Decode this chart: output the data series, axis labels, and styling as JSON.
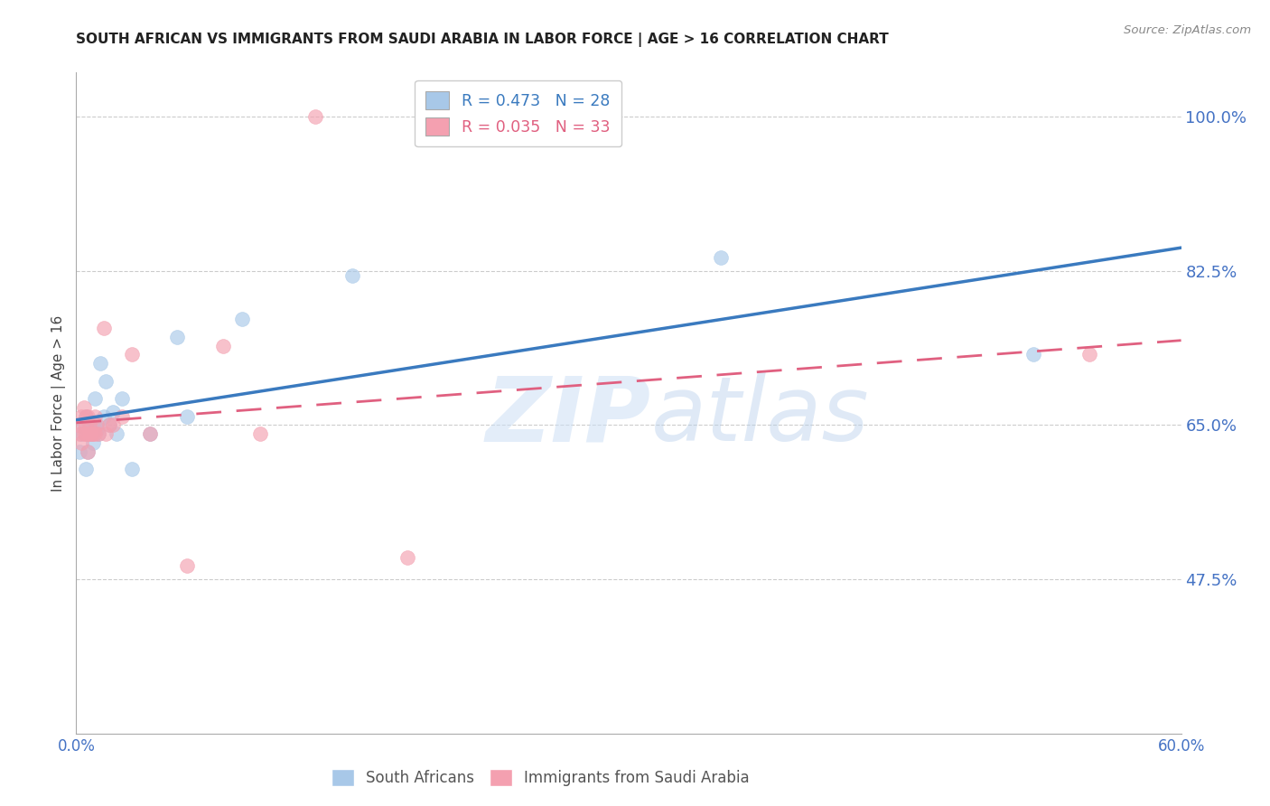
{
  "title": "SOUTH AFRICAN VS IMMIGRANTS FROM SAUDI ARABIA IN LABOR FORCE | AGE > 16 CORRELATION CHART",
  "source": "Source: ZipAtlas.com",
  "ylabel": "In Labor Force | Age > 16",
  "xlim": [
    0.0,
    0.6
  ],
  "ylim": [
    0.3,
    1.05
  ],
  "xtick_positions": [
    0.0,
    0.1,
    0.2,
    0.3,
    0.4,
    0.5,
    0.6
  ],
  "xticklabels": [
    "0.0%",
    "",
    "",
    "",
    "",
    "",
    "60.0%"
  ],
  "ytick_right_vals": [
    0.475,
    0.65,
    0.825,
    1.0
  ],
  "ytick_right_labels": [
    "47.5%",
    "65.0%",
    "82.5%",
    "100.0%"
  ],
  "blue_R": 0.473,
  "blue_N": 28,
  "pink_R": 0.035,
  "pink_N": 33,
  "blue_scatter_color": "#a8c8e8",
  "pink_scatter_color": "#f4a0b0",
  "blue_line_color": "#3a7abf",
  "pink_line_color": "#e06080",
  "axis_color": "#4472c4",
  "grid_color": "#cccccc",
  "blue_x": [
    0.002,
    0.003,
    0.004,
    0.005,
    0.005,
    0.006,
    0.007,
    0.008,
    0.009,
    0.01,
    0.01,
    0.011,
    0.012,
    0.013,
    0.015,
    0.016,
    0.018,
    0.02,
    0.022,
    0.025,
    0.03,
    0.04,
    0.055,
    0.06,
    0.09,
    0.15,
    0.35,
    0.52
  ],
  "blue_y": [
    0.62,
    0.64,
    0.65,
    0.6,
    0.66,
    0.62,
    0.655,
    0.64,
    0.63,
    0.65,
    0.68,
    0.645,
    0.64,
    0.72,
    0.66,
    0.7,
    0.65,
    0.665,
    0.64,
    0.68,
    0.6,
    0.64,
    0.75,
    0.66,
    0.77,
    0.82,
    0.84,
    0.73
  ],
  "pink_x": [
    0.001,
    0.002,
    0.003,
    0.003,
    0.004,
    0.004,
    0.005,
    0.005,
    0.005,
    0.006,
    0.006,
    0.006,
    0.007,
    0.007,
    0.008,
    0.009,
    0.01,
    0.01,
    0.011,
    0.012,
    0.015,
    0.016,
    0.018,
    0.02,
    0.025,
    0.03,
    0.04,
    0.06,
    0.08,
    0.1,
    0.13,
    0.18,
    0.55
  ],
  "pink_y": [
    0.65,
    0.64,
    0.63,
    0.66,
    0.64,
    0.67,
    0.64,
    0.65,
    0.66,
    0.62,
    0.64,
    0.66,
    0.64,
    0.65,
    0.64,
    0.64,
    0.64,
    0.66,
    0.65,
    0.64,
    0.76,
    0.64,
    0.65,
    0.65,
    0.66,
    0.73,
    0.64,
    0.49,
    0.74,
    0.64,
    1.0,
    0.5,
    0.73
  ],
  "title_fontsize": 11,
  "legend_fontsize": 12.5
}
